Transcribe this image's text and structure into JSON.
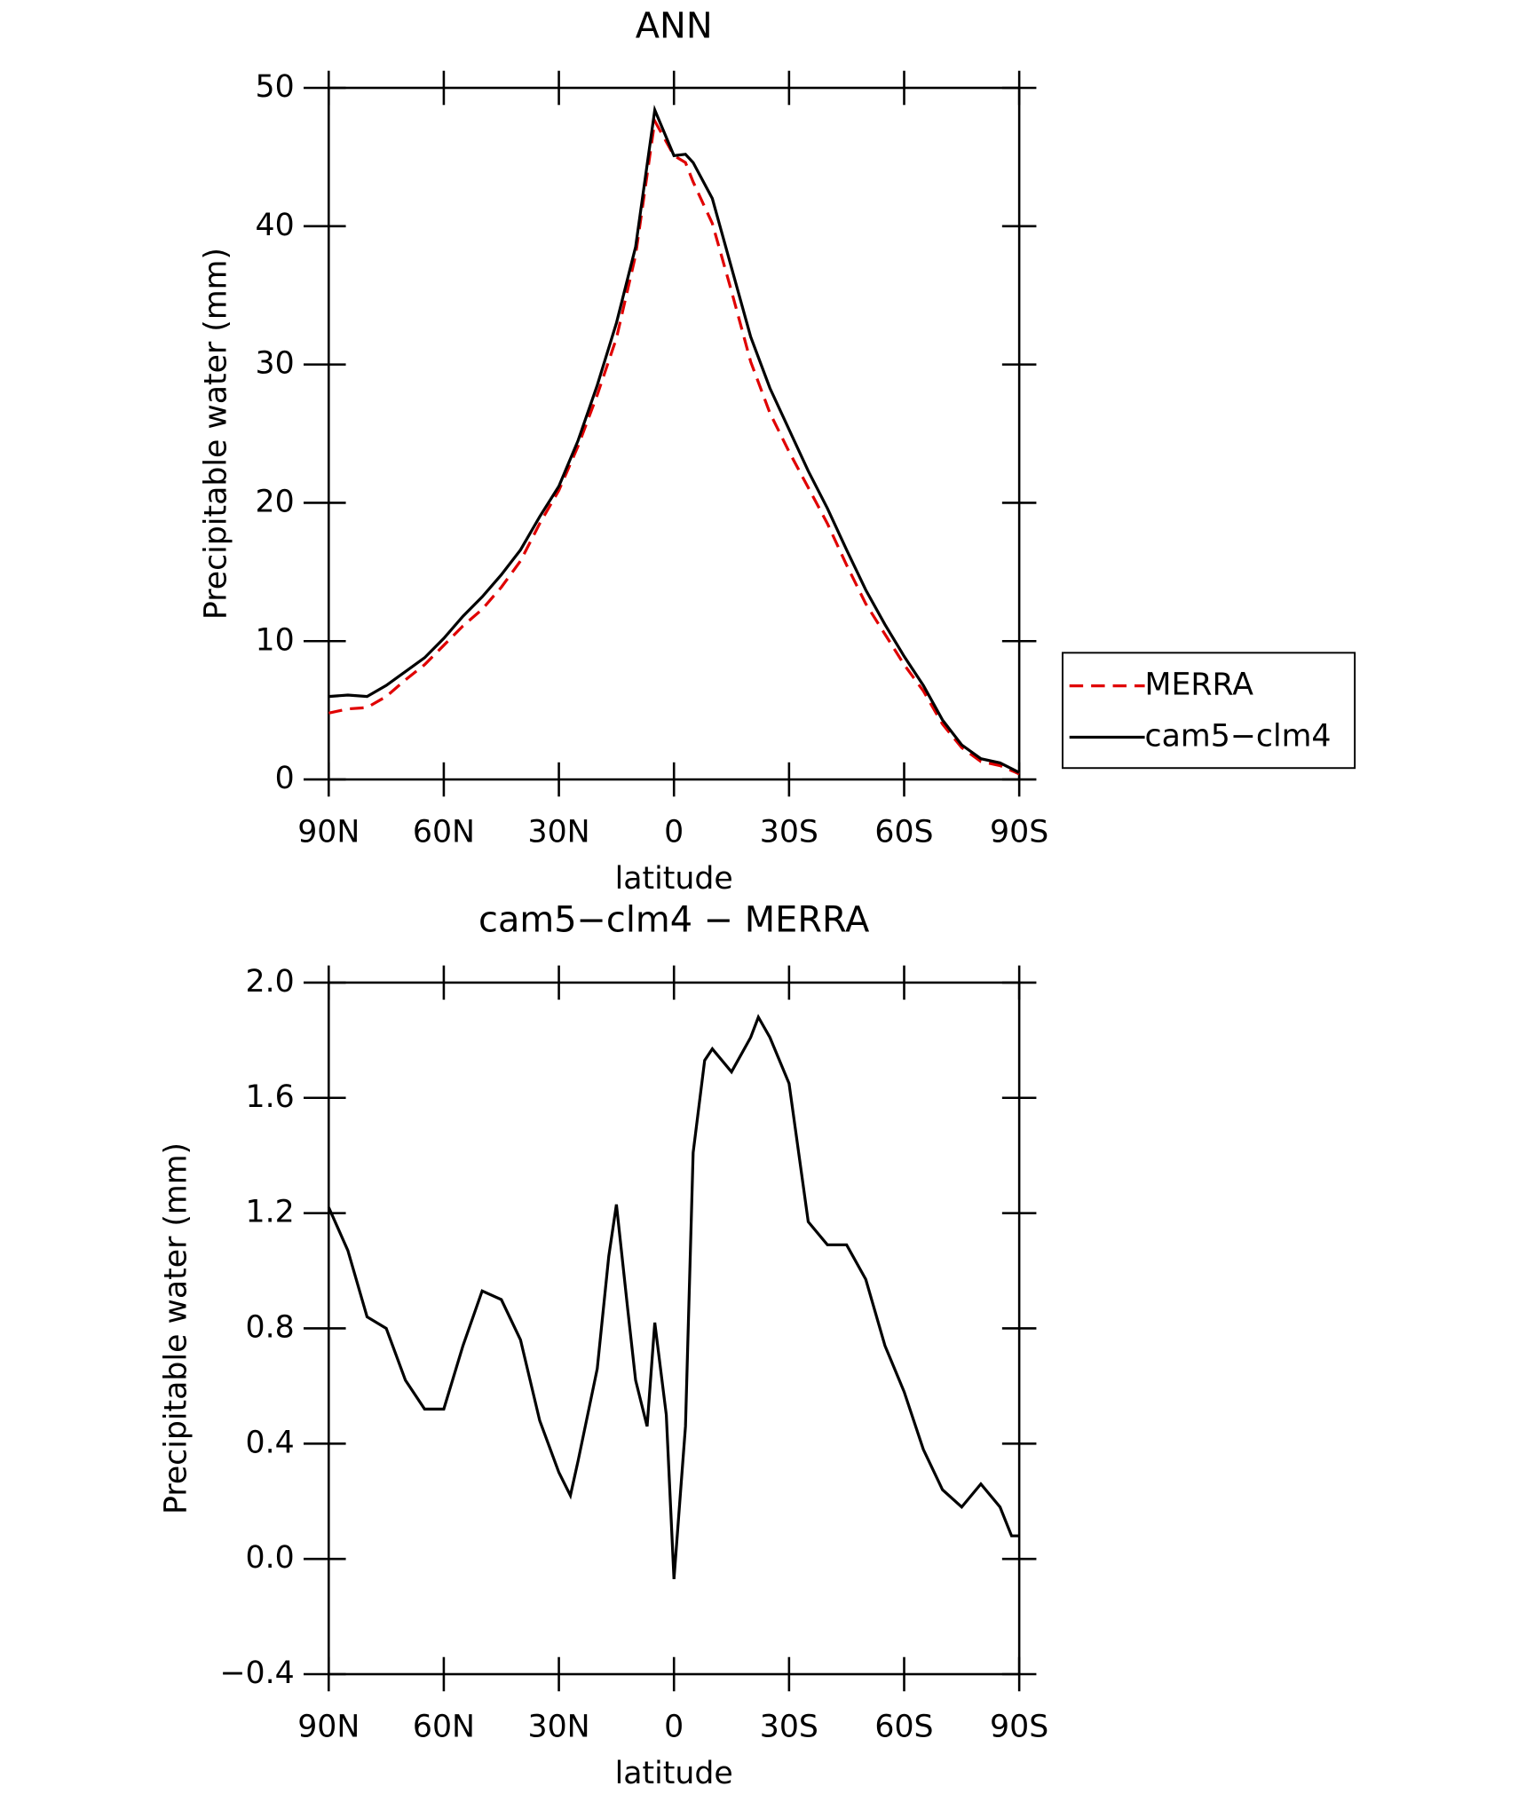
{
  "chart_data": [
    {
      "type": "line",
      "title": "ANN",
      "xlabel": "latitude",
      "ylabel": "Precipitable water (mm)",
      "x": [
        90,
        85,
        80,
        75,
        70,
        65,
        60,
        55,
        50,
        45,
        40,
        35,
        30,
        25,
        20,
        15,
        10,
        5,
        0,
        -3,
        -5,
        -10,
        -15,
        -20,
        -25,
        -30,
        -35,
        -40,
        -45,
        -50,
        -55,
        -60,
        -65,
        -70,
        -75,
        -80,
        -85,
        -90
      ],
      "series": [
        {
          "name": "MERRA",
          "color": "#e00000",
          "dash": true,
          "values": [
            4.8,
            5.1,
            5.2,
            6.0,
            7.2,
            8.3,
            9.7,
            11.1,
            12.3,
            13.9,
            15.8,
            18.5,
            20.9,
            24.1,
            27.8,
            31.9,
            37.9,
            47.6,
            45.1,
            44.6,
            43.2,
            40.2,
            35.3,
            30.2,
            26.5,
            23.7,
            21.1,
            18.5,
            15.5,
            12.7,
            10.5,
            8.3,
            6.4,
            4.0,
            2.3,
            1.3,
            1.0,
            0.4
          ]
        },
        {
          "name": "cam5−clm4",
          "color": "#000000",
          "dash": false,
          "values": [
            6.0,
            6.1,
            6.0,
            6.8,
            7.8,
            8.8,
            10.2,
            11.8,
            13.2,
            14.8,
            16.6,
            19.0,
            21.2,
            24.5,
            28.5,
            33.0,
            38.5,
            48.4,
            45.1,
            45.2,
            44.6,
            42.0,
            37.0,
            32.0,
            28.3,
            25.3,
            22.3,
            19.6,
            16.6,
            13.7,
            11.2,
            8.9,
            6.8,
            4.3,
            2.5,
            1.5,
            1.2,
            0.5
          ]
        }
      ],
      "xlim": [
        90,
        -90
      ],
      "xticks": [
        {
          "value": 90,
          "label": "90N"
        },
        {
          "value": 60,
          "label": "60N"
        },
        {
          "value": 30,
          "label": "30N"
        },
        0,
        {
          "value": -30,
          "label": "30S"
        },
        {
          "value": -60,
          "label": "60S"
        },
        {
          "value": -90,
          "label": "90S"
        }
      ],
      "ylim": [
        0,
        50
      ],
      "yticks": [
        0,
        10,
        20,
        30,
        40,
        50
      ],
      "legend": "right"
    },
    {
      "type": "line",
      "title": "cam5−clm4 − MERRA",
      "xlabel": "latitude",
      "ylabel": "Precipitable water (mm)",
      "x": [
        90,
        85,
        80,
        75,
        70,
        65,
        60,
        55,
        50,
        45,
        40,
        35,
        30,
        27,
        25,
        20,
        17,
        15,
        12,
        10,
        7,
        5,
        2,
        0,
        -3,
        -5,
        -8,
        -10,
        -15,
        -20,
        -22,
        -25,
        -30,
        -35,
        -40,
        -45,
        -50,
        -55,
        -60,
        -65,
        -70,
        -75,
        -80,
        -85,
        -88,
        -90
      ],
      "series": [
        {
          "color": "#000000",
          "dash": false,
          "values": [
            1.22,
            1.07,
            0.84,
            0.8,
            0.62,
            0.52,
            0.52,
            0.74,
            0.93,
            0.9,
            0.76,
            0.48,
            0.3,
            0.22,
            0.34,
            0.66,
            1.05,
            1.23,
            0.86,
            0.62,
            0.46,
            0.82,
            0.5,
            -0.07,
            0.46,
            1.41,
            1.73,
            1.77,
            1.69,
            1.81,
            1.88,
            1.81,
            1.65,
            1.17,
            1.09,
            1.09,
            0.97,
            0.74,
            0.58,
            0.38,
            0.24,
            0.18,
            0.26,
            0.18,
            0.08,
            0.08
          ]
        }
      ],
      "xlim": [
        90,
        -90
      ],
      "xticks": [
        {
          "value": 90,
          "label": "90N"
        },
        {
          "value": 60,
          "label": "60N"
        },
        {
          "value": 30,
          "label": "30N"
        },
        0,
        {
          "value": -30,
          "label": "30S"
        },
        {
          "value": -60,
          "label": "60S"
        },
        {
          "value": -90,
          "label": "90S"
        }
      ],
      "ylim": [
        -0.4,
        2.0
      ],
      "yticks": [
        {
          "value": -0.4,
          "label": "−0.4"
        },
        {
          "value": 0,
          "label": "0.0"
        },
        0.4,
        0.8,
        1.2,
        1.6,
        {
          "value": 2,
          "label": "2.0"
        }
      ]
    }
  ]
}
